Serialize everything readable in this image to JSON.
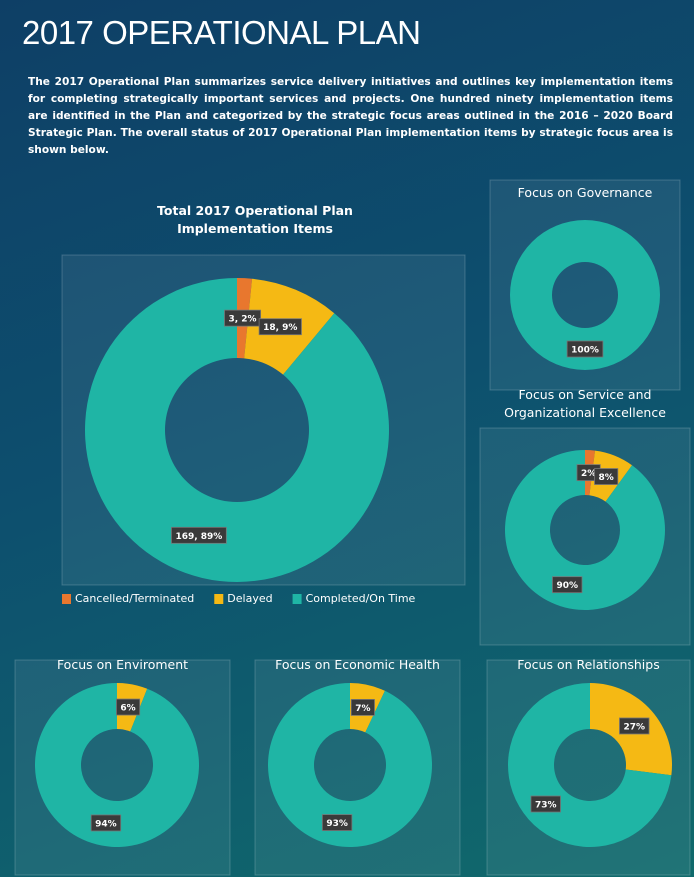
{
  "header": {
    "title": "2017 OPERATIONAL PLAN",
    "text": "The 2017 Operational Plan summarizes service delivery initiatives and outlines key implementation items for completing strategically important services and projects. One hundred ninety implementation items are identified in the Plan and categorized by the strategic focus areas outlined in the 2016 – 2020 Board Strategic Plan. The overall status of 2017 Operational Plan implementation items by strategic focus area is shown below."
  },
  "chart_data": [
    {
      "type": "donut",
      "title": "Total 2017 Operational Plan Implementation Items",
      "categories": [
        "Cancelled/Terminated",
        "Delayed",
        "Completed/On Time"
      ],
      "values": [
        3,
        18,
        169
      ],
      "value_labels": [
        "3, 2%",
        "18, 9%",
        "169, 89%"
      ],
      "colors": [
        "#e8772e",
        "#f5b914",
        "#1fb5a5"
      ],
      "legend": "bottom"
    },
    {
      "type": "donut",
      "title": "Focus on Governance",
      "values": [
        100
      ],
      "value_labels": [
        "100%"
      ],
      "colors": [
        "#1fb5a5"
      ]
    },
    {
      "type": "donut",
      "title": "Focus on Service and Organizational Excellence",
      "values": [
        2,
        8,
        90
      ],
      "value_labels": [
        "2%",
        "8%",
        "90%"
      ],
      "colors": [
        "#e8772e",
        "#f5b914",
        "#1fb5a5"
      ]
    },
    {
      "type": "donut",
      "title": "Focus on Enviroment",
      "values": [
        6,
        94
      ],
      "value_labels": [
        "6%",
        "94%"
      ],
      "colors": [
        "#f5b914",
        "#1fb5a5"
      ]
    },
    {
      "type": "donut",
      "title": "Focus on Economic Health",
      "values": [
        7,
        93
      ],
      "value_labels": [
        "7%",
        "93%"
      ],
      "colors": [
        "#f5b914",
        "#1fb5a5"
      ]
    },
    {
      "type": "donut",
      "title": "Focus on Relationships",
      "values": [
        27,
        73
      ],
      "value_labels": [
        "27%",
        "73%"
      ],
      "colors": [
        "#f5b914",
        "#1fb5a5"
      ]
    }
  ]
}
